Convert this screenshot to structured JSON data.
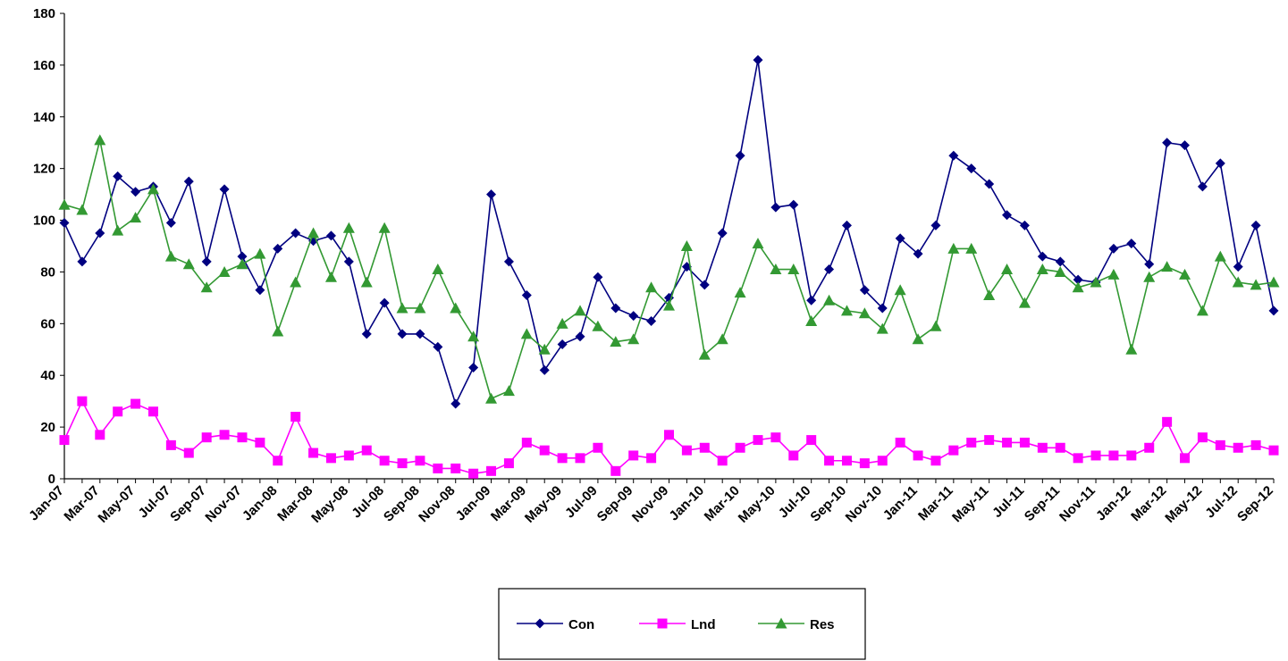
{
  "chart_data": {
    "type": "line",
    "categories": [
      "Jan-07",
      null,
      "Mar-07",
      null,
      "May-07",
      null,
      "Jul-07",
      null,
      "Sep-07",
      null,
      "Nov-07",
      null,
      "Jan-08",
      null,
      "Mar-08",
      null,
      "May-08",
      null,
      "Jul-08",
      null,
      "Sep-08",
      null,
      "Nov-08",
      null,
      "Jan-09",
      null,
      "Mar-09",
      null,
      "May-09",
      null,
      "Jul-09",
      null,
      "Sep-09",
      null,
      "Nov-09",
      null,
      "Jan-10",
      null,
      "Mar-10",
      null,
      "May-10",
      null,
      "Jul-10",
      null,
      "Sep-10",
      null,
      "Nov-10",
      null,
      "Jan-11",
      null,
      "Mar-11",
      null,
      "May-11",
      null,
      "Jul-11",
      null,
      "Sep-11",
      null,
      "Nov-11",
      null,
      "Jan-12",
      null,
      "Mar-12",
      null,
      "May-12",
      null,
      "Jul-12",
      null,
      "Sep-12"
    ],
    "series": [
      {
        "name": "Con",
        "color": "#000080",
        "marker": "diamond",
        "values": [
          99,
          84,
          95,
          117,
          111,
          113,
          99,
          115,
          84,
          112,
          86,
          73,
          89,
          95,
          92,
          94,
          84,
          56,
          68,
          56,
          56,
          51,
          29,
          43,
          110,
          84,
          71,
          42,
          52,
          55,
          78,
          66,
          63,
          61,
          70,
          82,
          75,
          95,
          125,
          162,
          105,
          106,
          69,
          81,
          98,
          73,
          66,
          93,
          87,
          98,
          125,
          120,
          114,
          102,
          98,
          86,
          84,
          77,
          76,
          89,
          91,
          83,
          130,
          129,
          113,
          122,
          82,
          98,
          65
        ]
      },
      {
        "name": "Lnd",
        "color": "#ff00ff",
        "marker": "square",
        "values": [
          15,
          30,
          17,
          26,
          29,
          26,
          13,
          10,
          16,
          17,
          16,
          14,
          7,
          24,
          10,
          8,
          9,
          11,
          7,
          6,
          7,
          4,
          4,
          2,
          3,
          6,
          14,
          11,
          8,
          8,
          12,
          3,
          9,
          8,
          17,
          11,
          12,
          7,
          12,
          15,
          16,
          9,
          15,
          7,
          7,
          6,
          7,
          14,
          9,
          7,
          11,
          14,
          15,
          14,
          14,
          12,
          12,
          8,
          9,
          9,
          9,
          12,
          22,
          8,
          16,
          13,
          12,
          13,
          11
        ]
      },
      {
        "name": "Res",
        "color": "#339933",
        "marker": "triangle",
        "values": [
          106,
          104,
          131,
          96,
          101,
          112,
          86,
          83,
          74,
          80,
          83,
          87,
          57,
          76,
          95,
          78,
          97,
          76,
          97,
          66,
          66,
          81,
          66,
          55,
          31,
          34,
          56,
          50,
          60,
          65,
          59,
          53,
          54,
          74,
          67,
          90,
          48,
          54,
          72,
          91,
          81,
          81,
          61,
          69,
          65,
          64,
          58,
          73,
          54,
          59,
          89,
          89,
          71,
          81,
          68,
          81,
          80,
          74,
          76,
          79,
          50,
          78,
          82,
          79,
          65,
          86,
          76,
          75,
          76
        ]
      }
    ],
    "ylim": [
      0,
      180
    ],
    "yticks": [
      0,
      20,
      40,
      60,
      80,
      100,
      120,
      140,
      160,
      180
    ],
    "grid": false,
    "legend": "bottom"
  }
}
